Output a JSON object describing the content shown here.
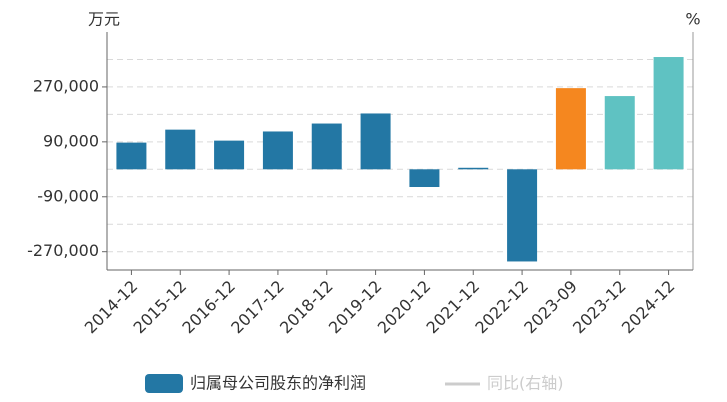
{
  "chart_data": {
    "type": "bar",
    "y_label": "万元",
    "y2_label": "%",
    "categories": [
      "2014-12",
      "2015-12",
      "2016-12",
      "2017-12",
      "2018-12",
      "2019-12",
      "2020-12",
      "2021-12",
      "2022-12",
      "2023-09",
      "2023-12",
      "2024-12"
    ],
    "series": [
      {
        "name": "归属母公司股东的净利润",
        "color": "#2377a4",
        "values": [
          87500,
          130000,
          94000,
          124000,
          150000,
          183000,
          -58000,
          5000,
          -302000,
          266000,
          240000,
          368000
        ],
        "colors": [
          "#2377a4",
          "#2377a4",
          "#2377a4",
          "#2377a4",
          "#2377a4",
          "#2377a4",
          "#2377a4",
          "#2377a4",
          "#2377a4",
          "#f5871f",
          "#5fc2c2",
          "#5fc2c2"
        ]
      }
    ],
    "inactive_legend": {
      "name": "同比(右轴)",
      "color": "#cccccc"
    },
    "ylim": [
      -330000,
      450000
    ],
    "yticks": [
      {
        "value": 270000,
        "label": "270,000"
      },
      {
        "value": 90000,
        "label": "90,000"
      },
      {
        "value": -90000,
        "label": "-90,000"
      },
      {
        "value": -270000,
        "label": "-270,000"
      }
    ],
    "grid_lines": [
      360000,
      270000,
      180000,
      90000,
      0,
      -90000,
      -180000,
      -270000
    ],
    "grid": true
  }
}
